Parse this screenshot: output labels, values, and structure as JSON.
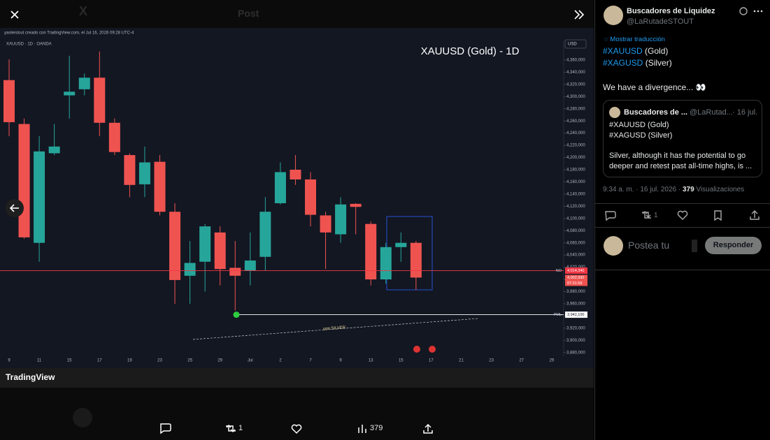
{
  "header": {
    "title": "Post"
  },
  "chart_data": {
    "type": "candlestick",
    "title": "XAUUSD (Gold) - 1D",
    "credit": "yasleistout creado con TradingView.com, el Jul 16, 2026 09:28 UTC-4",
    "symbol": "XAUUSD · 1D · OANDA",
    "currency": "USD",
    "logo": "TradingView",
    "annotation": "smt SILVER",
    "up_color": "#26a69a",
    "down_color": "#ef5350",
    "x_labels": [
      "9",
      "11",
      "15",
      "17",
      "19",
      "23",
      "25",
      "29",
      "Jul",
      "2",
      "7",
      "9",
      "13",
      "15",
      "17",
      "21",
      "23",
      "27",
      "29"
    ],
    "open": [
      4327000,
      4255000,
      4060000,
      4207000,
      4302000,
      4312000,
      4331000,
      4257000,
      4204000,
      4156000,
      4193000,
      4111000,
      4006000,
      4029000,
      4077000,
      4019000,
      4014000,
      4037000,
      4125000,
      4180000,
      4164000,
      4105000,
      4074000,
      4124000,
      4091000,
      4000000,
      4053000,
      4060000
    ],
    "high": [
      4361000,
      4264000,
      4235000,
      4255000,
      4367000,
      4338000,
      4374000,
      4264000,
      4207000,
      4218000,
      4204000,
      4125000,
      4063000,
      4091000,
      4087000,
      4063000,
      4077000,
      4135000,
      4192000,
      4204000,
      4176000,
      4111000,
      4135000,
      4125000,
      4095000,
      4060000,
      4077000,
      4063000
    ],
    "low": [
      4235000,
      4067000,
      4029000,
      4204000,
      4264000,
      4302000,
      4235000,
      4204000,
      4135000,
      4135000,
      4105000,
      3960000,
      3960000,
      3980000,
      3990000,
      3949000,
      3990000,
      4014000,
      4123000,
      4155000,
      4087000,
      4017000,
      4060000,
      4074000,
      3990000,
      3993000,
      4029000,
      3983000
    ],
    "close": [
      4258000,
      4069000,
      4210000,
      4218000,
      4308000,
      4331000,
      4257000,
      4209000,
      4155000,
      4192000,
      4111000,
      3999000,
      4027000,
      4087000,
      4017000,
      4006000,
      4031000,
      4111000,
      4176000,
      4164000,
      4106000,
      4077000,
      4123000,
      4119000,
      4000000,
      4053000,
      4060000,
      4003000
    ],
    "ylim": [
      3874000,
      4392000
    ],
    "yticks": [
      {
        "value": 4360000,
        "label": "4,360,000"
      },
      {
        "value": 4340000,
        "label": "4,340,000"
      },
      {
        "value": 4320000,
        "label": "4,320,000"
      },
      {
        "value": 4300000,
        "label": "4,300,000"
      },
      {
        "value": 4280000,
        "label": "4,280,000"
      },
      {
        "value": 4260000,
        "label": "4,260,000"
      },
      {
        "value": 4240000,
        "label": "4,240,000"
      },
      {
        "value": 4220000,
        "label": "4,220,000"
      },
      {
        "value": 4200000,
        "label": "4,200,000"
      },
      {
        "value": 4180000,
        "label": "4,180,000"
      },
      {
        "value": 4160000,
        "label": "4,160,000"
      },
      {
        "value": 4140000,
        "label": "4,140,000"
      },
      {
        "value": 4120000,
        "label": "4,120,000"
      },
      {
        "value": 4100000,
        "label": "4,100,000"
      },
      {
        "value": 4080000,
        "label": "4,080,000"
      },
      {
        "value": 4060000,
        "label": "4,060,000"
      },
      {
        "value": 4040000,
        "label": "4,040,000"
      },
      {
        "value": 4020000,
        "label": "4,020,000"
      },
      {
        "value": 4000000,
        "label": "4,000,000"
      },
      {
        "value": 3980000,
        "label": "3,980,000"
      },
      {
        "value": 3960000,
        "label": "3,960,000"
      },
      {
        "value": 3940000,
        "label": "3,940,000"
      },
      {
        "value": 3920000,
        "label": "3,920,000"
      },
      {
        "value": 3900000,
        "label": "3,900,000"
      },
      {
        "value": 3880000,
        "label": "3,880,000"
      }
    ],
    "levels": [
      {
        "name": "NO",
        "value": 4014340,
        "value_label": "4,014,340",
        "color": "#f23645"
      },
      {
        "name": "PML",
        "value": 3942100,
        "value_label": "3,942,100",
        "color": "#ffffff"
      }
    ],
    "last_price": {
      "value": 4002990,
      "label": "4,002,990",
      "countdown": "07:31:58"
    }
  },
  "post": {
    "author": "Buscadores de Liquidez",
    "handle": "@LaRutadeSTOUT",
    "translate": "Mostrar traducción",
    "tags": [
      {
        "tag": "#XAUUSD",
        "text": "(Gold)"
      },
      {
        "tag": "#XAGUSD",
        "text": "(Silver)"
      }
    ],
    "body": "We have a divergence... 👀",
    "quote": {
      "author": "Buscadores de ...",
      "handle": "@LaRutad...",
      "date": "· 16 jul.",
      "lines": [
        "#XAUUSD (Gold)",
        "#XAGUSD (Silver)"
      ],
      "body": "Silver, although it has the potential to go deeper and retest past all-time highs, is ..."
    },
    "time": "9:34 a. m. · 16 jul. 2026 ·",
    "views": 379,
    "views_label": "Visualizaciones",
    "reposts": 1
  },
  "reply": {
    "placeholder": "Postea tu",
    "button": "Responder"
  }
}
